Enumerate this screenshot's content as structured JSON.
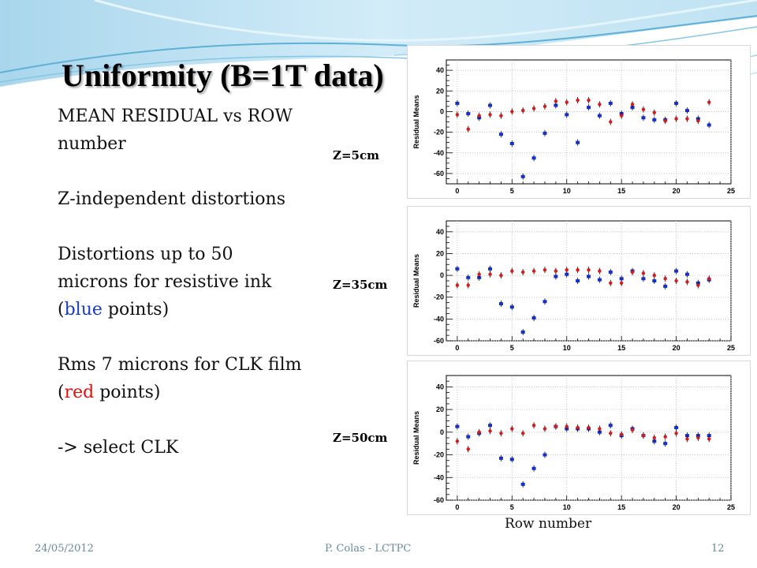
{
  "slide": {
    "title": "Uniformity (B=1T data)",
    "bullets": {
      "line1a": "MEAN RESIDUAL vs ROW",
      "line1b": "number",
      "line2": "Z-independent distortions",
      "line3a": "Distortions up to 50",
      "line3b": "microns for resistive ink",
      "line3c_pre": "(",
      "line3c_word": "blue",
      "line3c_post": " points)",
      "line4a": "Rms 7 microns for CLK film",
      "line4b_pre": "(",
      "line4b_word": "red",
      "line4b_post": " points)",
      "line5": "-> select CLK"
    },
    "x_caption": "Row number",
    "footer": {
      "date": "24/05/2012",
      "author": "P. Colas - LCTPC",
      "page": "12"
    }
  },
  "colors": {
    "blue_series": "#1530c8",
    "red_series": "#d41b1b",
    "accent_text_blue": "#1a3dbd",
    "accent_text_red": "#dd1111",
    "footer": "#6b8a9a"
  },
  "chart_data": [
    {
      "type": "scatter",
      "z_label": "Z=5cm",
      "ylabel": "Residual Means",
      "xlim": [
        -1,
        25
      ],
      "ylim": [
        -70,
        50
      ],
      "xticks": [
        0,
        5,
        10,
        15,
        20,
        25
      ],
      "yticks": [
        -60,
        -40,
        -20,
        0,
        20,
        40
      ],
      "grid": true,
      "series": [
        {
          "color": "blue",
          "x": [
            0,
            1,
            2,
            3,
            4,
            5,
            6,
            7,
            8,
            9,
            10,
            11,
            12,
            13,
            14,
            15,
            16,
            17,
            18,
            19,
            20,
            21,
            22,
            23
          ],
          "y": [
            8,
            -2,
            -6,
            6,
            -22,
            -31,
            -63,
            -45,
            -21,
            6,
            -3,
            -30,
            4,
            -4,
            8,
            -2,
            4,
            -6,
            -8,
            -8,
            8,
            1,
            -7,
            -13
          ]
        },
        {
          "color": "red",
          "x": [
            0,
            1,
            2,
            3,
            4,
            5,
            6,
            7,
            8,
            9,
            10,
            11,
            12,
            13,
            14,
            15,
            16,
            17,
            18,
            19,
            20,
            21,
            22,
            23
          ],
          "y": [
            -3,
            -17,
            -4,
            -3,
            -4,
            0,
            1,
            3,
            5,
            10,
            9,
            11,
            11,
            7,
            -10,
            -4,
            7,
            2,
            -1,
            -9,
            -7,
            -7,
            -9,
            9
          ]
        }
      ]
    },
    {
      "type": "scatter",
      "z_label": "Z=35cm",
      "ylabel": "Residual Means",
      "xlim": [
        -1,
        25
      ],
      "ylim": [
        -60,
        50
      ],
      "xticks": [
        0,
        5,
        10,
        15,
        20,
        25
      ],
      "yticks": [
        -60,
        -40,
        -20,
        0,
        20,
        40
      ],
      "grid": true,
      "series": [
        {
          "color": "blue",
          "x": [
            0,
            1,
            2,
            3,
            4,
            5,
            6,
            7,
            8,
            9,
            10,
            11,
            12,
            13,
            14,
            15,
            16,
            17,
            18,
            19,
            20,
            21,
            22,
            23
          ],
          "y": [
            6,
            -2,
            -2,
            6,
            -26,
            -29,
            -52,
            -39,
            -24,
            -1,
            1,
            -5,
            -1,
            -4,
            3,
            -3,
            4,
            -3,
            -5,
            -10,
            4,
            1,
            -7,
            -4
          ]
        },
        {
          "color": "red",
          "x": [
            0,
            1,
            2,
            3,
            4,
            5,
            6,
            7,
            8,
            9,
            10,
            11,
            12,
            13,
            14,
            15,
            16,
            17,
            18,
            19,
            20,
            21,
            22,
            23
          ],
          "y": [
            -9,
            -9,
            1,
            1,
            0,
            4,
            3,
            4,
            5,
            4,
            5,
            5,
            5,
            4,
            -7,
            -7,
            3,
            2,
            0,
            -3,
            -5,
            -6,
            -9,
            -3
          ]
        }
      ]
    },
    {
      "type": "scatter",
      "z_label": "Z=50cm",
      "ylabel": "Residual Means",
      "xlim": [
        -1,
        25
      ],
      "ylim": [
        -60,
        50
      ],
      "xticks": [
        0,
        5,
        10,
        15,
        20,
        25
      ],
      "yticks": [
        -60,
        -40,
        -20,
        0,
        20,
        40
      ],
      "grid": true,
      "series": [
        {
          "color": "blue",
          "x": [
            0,
            1,
            2,
            3,
            4,
            5,
            6,
            7,
            8,
            9,
            10,
            11,
            12,
            13,
            14,
            15,
            16,
            17,
            18,
            19,
            20,
            21,
            22,
            23
          ],
          "y": [
            5,
            -4,
            -1,
            6,
            -23,
            -24,
            -46,
            -32,
            -20,
            5,
            3,
            3,
            3,
            0,
            6,
            -3,
            3,
            -3,
            -8,
            -10,
            4,
            -3,
            -3,
            -3
          ]
        },
        {
          "color": "red",
          "x": [
            0,
            1,
            2,
            3,
            4,
            5,
            6,
            7,
            8,
            9,
            10,
            11,
            12,
            13,
            14,
            15,
            16,
            17,
            18,
            19,
            20,
            21,
            22,
            23
          ],
          "y": [
            -8,
            -15,
            0,
            1,
            -1,
            3,
            -1,
            6,
            3,
            5,
            5,
            4,
            4,
            3,
            -1,
            -2,
            2,
            -3,
            -5,
            -4,
            -1,
            -6,
            -5,
            -6
          ]
        }
      ]
    }
  ]
}
